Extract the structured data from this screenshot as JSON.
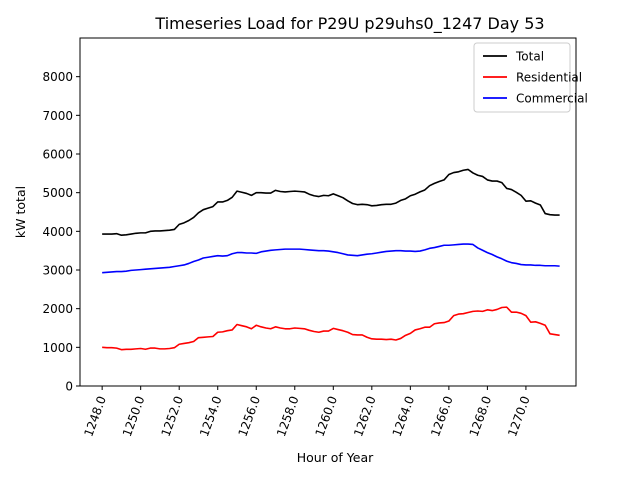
{
  "chart_data": {
    "type": "line",
    "title": "Timeseries Load for P29U p29uhs0_1247  Day 53",
    "xlabel": "Hour of Year",
    "ylabel": "kW total",
    "xlim": [
      1246.85,
      1272.6
    ],
    "ylim": [
      0,
      9000
    ],
    "xticks": [
      1248,
      1250,
      1252,
      1254,
      1256,
      1258,
      1260,
      1262,
      1264,
      1266,
      1268,
      1270
    ],
    "xtick_labels": [
      "1248.0",
      "1250.0",
      "1252.0",
      "1254.0",
      "1256.0",
      "1258.0",
      "1260.0",
      "1262.0",
      "1264.0",
      "1266.0",
      "1268.0",
      "1270.0"
    ],
    "yticks": [
      0,
      1000,
      2000,
      3000,
      4000,
      5000,
      6000,
      7000,
      8000
    ],
    "ytick_labels": [
      "0",
      "1000",
      "2000",
      "3000",
      "4000",
      "5000",
      "6000",
      "7000",
      "8000"
    ],
    "grid": false,
    "legend_position": "top-right",
    "x": [
      1248.0,
      1248.25,
      1248.5,
      1248.75,
      1249.0,
      1249.25,
      1249.5,
      1249.75,
      1250.0,
      1250.25,
      1250.5,
      1250.75,
      1251.0,
      1251.25,
      1251.5,
      1251.75,
      1252.0,
      1252.25,
      1252.5,
      1252.75,
      1253.0,
      1253.25,
      1253.5,
      1253.75,
      1254.0,
      1254.25,
      1254.5,
      1254.75,
      1255.0,
      1255.25,
      1255.5,
      1255.75,
      1256.0,
      1256.25,
      1256.5,
      1256.75,
      1257.0,
      1257.25,
      1257.5,
      1257.75,
      1258.0,
      1258.25,
      1258.5,
      1258.75,
      1259.0,
      1259.25,
      1259.5,
      1259.75,
      1260.0,
      1260.25,
      1260.5,
      1260.75,
      1261.0,
      1261.25,
      1261.5,
      1261.75,
      1262.0,
      1262.25,
      1262.5,
      1262.75,
      1263.0,
      1263.25,
      1263.5,
      1263.75,
      1264.0,
      1264.25,
      1264.5,
      1264.75,
      1265.0,
      1265.25,
      1265.5,
      1265.75,
      1266.0,
      1266.25,
      1266.5,
      1266.75,
      1267.0,
      1267.25,
      1267.5,
      1267.75,
      1268.0,
      1268.25,
      1268.5,
      1268.75,
      1269.0,
      1269.25,
      1269.5,
      1269.75,
      1270.0,
      1270.25,
      1270.5,
      1270.75,
      1271.0,
      1271.25,
      1271.5,
      1271.75
    ],
    "series": [
      {
        "name": "Total",
        "color": "#000000",
        "values": [
          3930,
          3930,
          3930,
          3940,
          3900,
          3910,
          3930,
          3950,
          3960,
          3960,
          4000,
          4010,
          4010,
          4020,
          4030,
          4050,
          4180,
          4220,
          4280,
          4360,
          4480,
          4560,
          4600,
          4640,
          4760,
          4760,
          4800,
          4880,
          5040,
          5010,
          4980,
          4930,
          5000,
          5000,
          4990,
          4990,
          5060,
          5030,
          5020,
          5030,
          5040,
          5030,
          5020,
          4960,
          4920,
          4900,
          4930,
          4920,
          4970,
          4920,
          4870,
          4790,
          4720,
          4690,
          4700,
          4690,
          4660,
          4670,
          4690,
          4700,
          4700,
          4730,
          4800,
          4840,
          4920,
          4960,
          5020,
          5070,
          5180,
          5240,
          5290,
          5330,
          5470,
          5520,
          5540,
          5580,
          5600,
          5510,
          5450,
          5420,
          5330,
          5300,
          5300,
          5260,
          5110,
          5080,
          5010,
          4930,
          4780,
          4790,
          4730,
          4680,
          4460,
          4430,
          4420,
          4420
        ]
      },
      {
        "name": "Residential",
        "color": "#ff0000",
        "values": [
          1000,
          990,
          990,
          980,
          940,
          950,
          950,
          960,
          970,
          950,
          980,
          980,
          960,
          960,
          970,
          990,
          1080,
          1100,
          1120,
          1150,
          1250,
          1260,
          1270,
          1280,
          1390,
          1400,
          1430,
          1450,
          1590,
          1560,
          1530,
          1480,
          1570,
          1530,
          1500,
          1480,
          1530,
          1500,
          1480,
          1480,
          1500,
          1490,
          1480,
          1440,
          1410,
          1390,
          1420,
          1420,
          1490,
          1460,
          1430,
          1390,
          1330,
          1320,
          1320,
          1260,
          1220,
          1210,
          1210,
          1200,
          1210,
          1190,
          1230,
          1310,
          1360,
          1450,
          1480,
          1520,
          1520,
          1610,
          1630,
          1640,
          1680,
          1820,
          1860,
          1870,
          1900,
          1930,
          1940,
          1930,
          1970,
          1950,
          1980,
          2030,
          2040,
          1910,
          1910,
          1880,
          1820,
          1650,
          1660,
          1620,
          1570,
          1350,
          1330,
          1310
        ]
      },
      {
        "name": "Commercial",
        "color": "#0000ff",
        "values": [
          2930,
          2940,
          2950,
          2960,
          2960,
          2970,
          2990,
          3000,
          3010,
          3020,
          3030,
          3040,
          3050,
          3060,
          3070,
          3090,
          3110,
          3130,
          3170,
          3220,
          3260,
          3310,
          3330,
          3350,
          3370,
          3360,
          3370,
          3420,
          3450,
          3450,
          3440,
          3440,
          3430,
          3470,
          3490,
          3510,
          3520,
          3530,
          3540,
          3540,
          3540,
          3540,
          3530,
          3520,
          3510,
          3500,
          3500,
          3490,
          3470,
          3450,
          3420,
          3390,
          3380,
          3370,
          3390,
          3410,
          3420,
          3440,
          3460,
          3480,
          3490,
          3500,
          3500,
          3490,
          3490,
          3480,
          3490,
          3520,
          3560,
          3580,
          3610,
          3640,
          3640,
          3650,
          3660,
          3670,
          3670,
          3660,
          3570,
          3510,
          3450,
          3400,
          3340,
          3290,
          3230,
          3190,
          3170,
          3140,
          3130,
          3130,
          3120,
          3120,
          3110,
          3110,
          3110,
          3100
        ]
      }
    ]
  }
}
